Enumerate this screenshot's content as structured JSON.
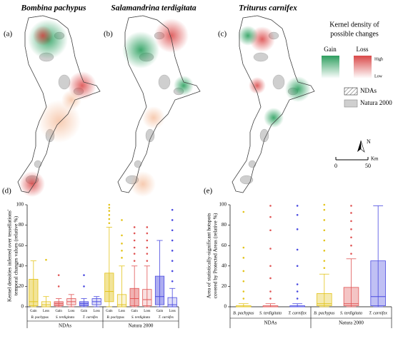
{
  "maps": [
    {
      "title": "Bombina pachypus",
      "panel_label": "(a)"
    },
    {
      "title": "Salamandrina terdigitata",
      "panel_label": "(b)"
    },
    {
      "title": "Triturus carnifex",
      "panel_label": "(c)"
    }
  ],
  "legend": {
    "title": [
      "Kernel density of",
      "possible changes"
    ],
    "gain": "Gain",
    "loss": "Loss",
    "high": "High",
    "low": "Low",
    "ndas": "NDAs",
    "natura": "Natura 2000",
    "gain_color": "#2e9e5e",
    "loss_color": "#d94848",
    "natura_color": "#cfcfcf"
  },
  "scale": {
    "north": "N",
    "start": "0",
    "end": "50",
    "unit": "Km"
  },
  "chart_data": [
    {
      "type": "box",
      "panel_label": "(d)",
      "y_label": [
        "Kernel densities inferred over tessellations'",
        "temporal changes values (relative %)"
      ],
      "ylim": [
        0,
        100
      ],
      "yticks": [
        0,
        20,
        40,
        60,
        80,
        100
      ],
      "groups": [
        {
          "name": "NDAs",
          "species": [
            {
              "name": "B. pachypus",
              "color": "#e3c41c",
              "boxes": [
                {
                  "name": "Gain",
                  "min": 0,
                  "q1": 1,
                  "median": 5,
                  "q3": 27,
                  "max": 45,
                  "outliers": []
                },
                {
                  "name": "Loss",
                  "min": 0,
                  "q1": 0,
                  "median": 2,
                  "q3": 5,
                  "max": 10,
                  "outliers": [
                    46
                  ]
                }
              ]
            },
            {
              "name": "S. terdigitata",
              "color": "#e05555",
              "boxes": [
                {
                  "name": "Gain",
                  "min": 0,
                  "q1": 1,
                  "median": 3,
                  "q3": 5,
                  "max": 8,
                  "outliers": [
                    20,
                    31
                  ]
                },
                {
                  "name": "Loss",
                  "min": 0,
                  "q1": 2,
                  "median": 5,
                  "q3": 8,
                  "max": 12,
                  "outliers": []
                }
              ]
            },
            {
              "name": "T. carnifex",
              "color": "#4a4ae0",
              "boxes": [
                {
                  "name": "Gain",
                  "min": 0,
                  "q1": 1,
                  "median": 3,
                  "q3": 5,
                  "max": 8,
                  "outliers": [
                    20,
                    31
                  ]
                },
                {
                  "name": "Loss",
                  "min": 0,
                  "q1": 2,
                  "median": 5,
                  "q3": 8,
                  "max": 10,
                  "outliers": []
                }
              ]
            }
          ]
        },
        {
          "name": "Natura 2000",
          "species": [
            {
              "name": "B. pachypus",
              "color": "#e3c41c",
              "boxes": [
                {
                  "name": "Gain",
                  "min": 0,
                  "q1": 5,
                  "median": 15,
                  "q3": 33,
                  "max": 78,
                  "outliers": [
                    82,
                    86,
                    90,
                    94,
                    97,
                    100
                  ]
                },
                {
                  "name": "Loss",
                  "min": 0,
                  "q1": 0,
                  "median": 2,
                  "q3": 12,
                  "max": 40,
                  "outliers": [
                    48,
                    55,
                    62,
                    70,
                    85
                  ]
                }
              ]
            },
            {
              "name": "S. terdigitata",
              "color": "#e05555",
              "boxes": [
                {
                  "name": "Gain",
                  "min": 0,
                  "q1": 1,
                  "median": 8,
                  "q3": 18,
                  "max": 40,
                  "outliers": [
                    45,
                    52,
                    58,
                    65,
                    72,
                    78
                  ]
                },
                {
                  "name": "Loss",
                  "min": 0,
                  "q1": 1,
                  "median": 7,
                  "q3": 17,
                  "max": 40,
                  "outliers": [
                    45,
                    52,
                    58,
                    65,
                    72,
                    78
                  ]
                }
              ]
            },
            {
              "name": "T. carnifex",
              "color": "#4a4ae0",
              "boxes": [
                {
                  "name": "Gain",
                  "min": 0,
                  "q1": 2,
                  "median": 10,
                  "q3": 30,
                  "max": 65,
                  "outliers": []
                },
                {
                  "name": "Loss",
                  "min": 0,
                  "q1": 0,
                  "median": 2,
                  "q3": 9,
                  "max": 18,
                  "outliers": [
                    25,
                    35,
                    45,
                    55,
                    65,
                    75,
                    85,
                    95
                  ]
                }
              ]
            }
          ]
        }
      ]
    },
    {
      "type": "box",
      "panel_label": "(e)",
      "y_label": [
        "Area of statistically-significant hotspots",
        "covered by Protected Areas (relative %)"
      ],
      "ylim": [
        0,
        100
      ],
      "yticks": [
        0,
        20,
        40,
        60,
        80,
        100
      ],
      "groups": [
        {
          "name": "NDAs",
          "species": [
            {
              "name": "B. pachypus",
              "color": "#e3c41c",
              "min": 0,
              "q1": 0,
              "median": 0,
              "q3": 1,
              "max": 3,
              "outliers": [
                8,
                15,
                25,
                35,
                48,
                58,
                93
              ]
            },
            {
              "name": "S. terdigitata",
              "color": "#e05555",
              "min": 0,
              "q1": 0,
              "median": 0,
              "q3": 1,
              "max": 3,
              "outliers": [
                8,
                15,
                28,
                40,
                57,
                75,
                88,
                99
              ]
            },
            {
              "name": "T. carnifex",
              "color": "#4a4ae0",
              "min": 0,
              "q1": 0,
              "median": 0,
              "q3": 1,
              "max": 3,
              "outliers": [
                8,
                15,
                22,
                40,
                56,
                76,
                90,
                99
              ]
            }
          ]
        },
        {
          "name": "Natura 2000",
          "species": [
            {
              "name": "B. pachypus",
              "color": "#e3c41c",
              "min": 0,
              "q1": 1,
              "median": 3,
              "q3": 13,
              "max": 32,
              "outliers": [
                38,
                45,
                55,
                65,
                75,
                85,
                95,
                100
              ]
            },
            {
              "name": "S. terdigitata",
              "color": "#e05555",
              "min": 0,
              "q1": 1,
              "median": 3,
              "q3": 19,
              "max": 47,
              "outliers": [
                52,
                60,
                68,
                76,
                84,
                92,
                99
              ]
            },
            {
              "name": "T. carnifex",
              "color": "#4a4ae0",
              "min": 0,
              "q1": 1,
              "median": 10,
              "q3": 45,
              "max": 99,
              "outliers": []
            }
          ]
        }
      ]
    }
  ]
}
